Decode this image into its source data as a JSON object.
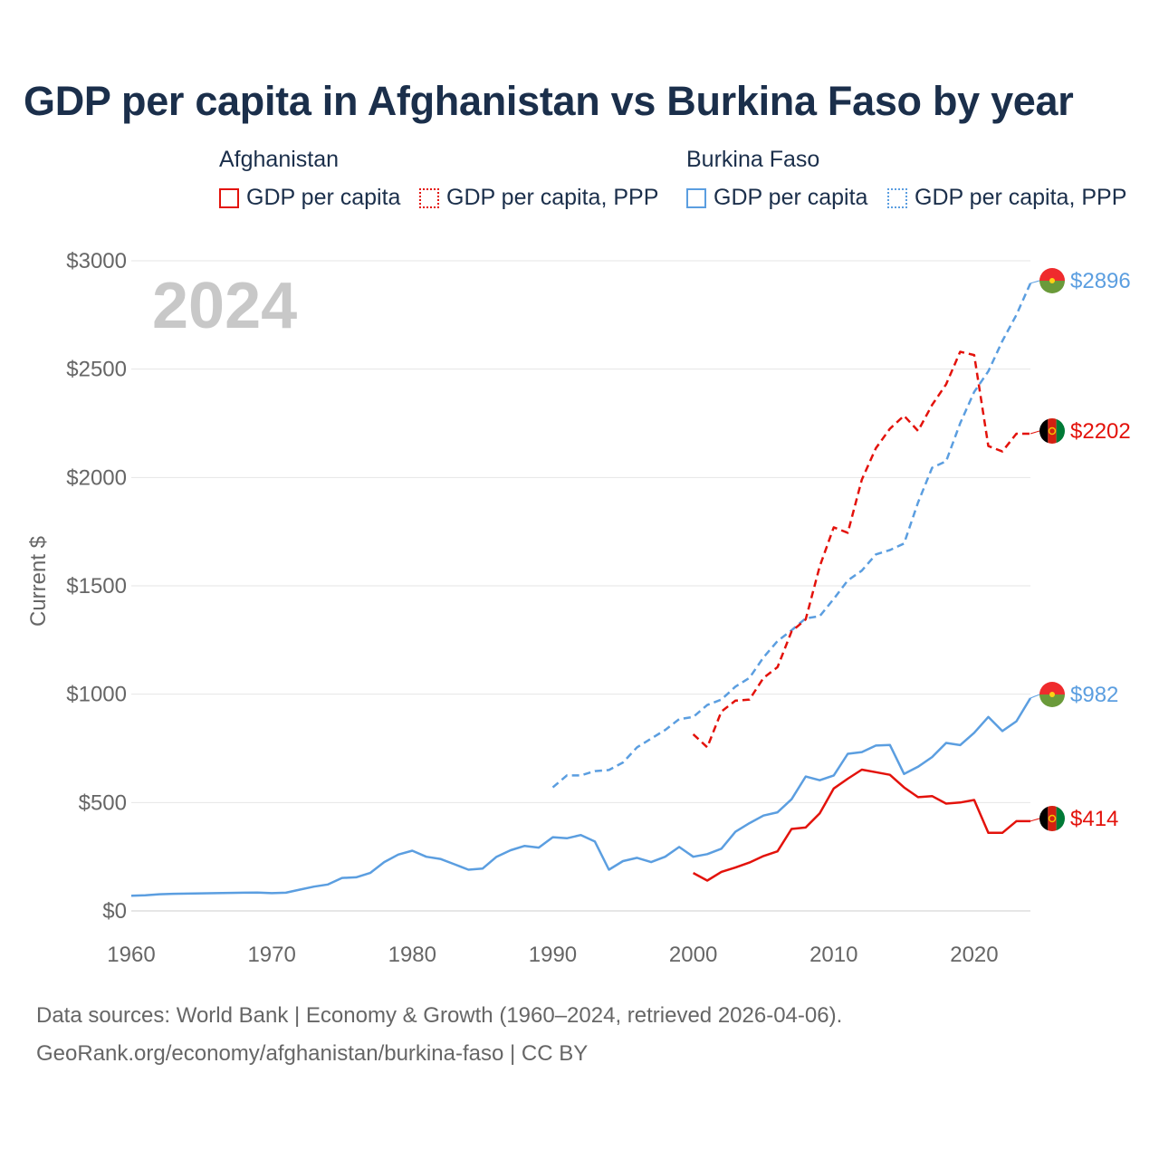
{
  "title": "GDP per capita in Afghanistan vs Burkina Faso by year",
  "legend": {
    "groups": [
      {
        "name": "Afghanistan",
        "items": [
          "GDP per capita",
          "GDP per capita, PPP"
        ]
      },
      {
        "name": "Burkina Faso",
        "items": [
          "GDP per capita",
          "GDP per capita, PPP"
        ]
      }
    ]
  },
  "year_label": "2024",
  "footer": {
    "line1": "Data sources: World Bank | Economy & Growth (1960–2024, retrieved 2026-04-06).",
    "line2": "GeoRank.org/economy/afghanistan/burkina-faso | CC BY"
  },
  "colors": {
    "afghanistan": "#e3120b",
    "burkina_faso": "#5b9ee0",
    "title": "#1b2f4b"
  },
  "chart_data": {
    "type": "line",
    "title": "GDP per capita in Afghanistan vs Burkina Faso by year",
    "xlabel": "",
    "ylabel": "Current $",
    "xlim": [
      1960,
      2024
    ],
    "ylim": [
      0,
      3000
    ],
    "x_ticks": [
      1960,
      1970,
      1980,
      1990,
      2000,
      2010,
      2020
    ],
    "y_ticks": [
      0,
      500,
      1000,
      1500,
      2000,
      2500,
      3000
    ],
    "y_tick_labels": [
      "$0",
      "$500",
      "$1000",
      "$1500",
      "$2000",
      "$2500",
      "$3000"
    ],
    "series": [
      {
        "name": "Burkina Faso GDP per capita",
        "country": "Burkina Faso",
        "style": "solid",
        "color": "#5b9ee0",
        "end_label": "$982",
        "x": [
          1960,
          1961,
          1962,
          1963,
          1964,
          1965,
          1966,
          1967,
          1968,
          1969,
          1970,
          1971,
          1972,
          1973,
          1974,
          1975,
          1976,
          1977,
          1978,
          1979,
          1980,
          1981,
          1982,
          1983,
          1984,
          1985,
          1986,
          1987,
          1988,
          1989,
          1990,
          1991,
          1992,
          1993,
          1994,
          1995,
          1996,
          1997,
          1998,
          1999,
          2000,
          2001,
          2002,
          2003,
          2004,
          2005,
          2006,
          2007,
          2008,
          2009,
          2010,
          2011,
          2012,
          2013,
          2014,
          2015,
          2016,
          2017,
          2018,
          2019,
          2020,
          2021,
          2022,
          2023,
          2024
        ],
        "values": [
          70,
          72,
          77,
          79,
          80,
          81,
          82,
          83,
          84,
          85,
          82,
          84,
          98,
          112,
          122,
          152,
          155,
          175,
          225,
          260,
          278,
          250,
          240,
          215,
          190,
          195,
          250,
          280,
          300,
          292,
          340,
          335,
          350,
          320,
          190,
          230,
          245,
          225,
          250,
          295,
          250,
          262,
          287,
          365,
          405,
          440,
          455,
          515,
          620,
          603,
          625,
          725,
          733,
          763,
          766,
          632,
          665,
          710,
          775,
          765,
          822,
          895,
          830,
          875,
          982
        ]
      },
      {
        "name": "Burkina Faso GDP per capita, PPP",
        "country": "Burkina Faso",
        "style": "dashed",
        "color": "#5b9ee0",
        "end_label": "$2896",
        "x": [
          1990,
          1991,
          1992,
          1993,
          1994,
          1995,
          1996,
          1997,
          1998,
          1999,
          2000,
          2001,
          2002,
          2003,
          2004,
          2005,
          2006,
          2007,
          2008,
          2009,
          2010,
          2011,
          2012,
          2013,
          2014,
          2015,
          2016,
          2017,
          2018,
          2019,
          2020,
          2021,
          2022,
          2023,
          2024
        ],
        "values": [
          570,
          625,
          625,
          645,
          650,
          685,
          755,
          795,
          835,
          885,
          895,
          950,
          975,
          1035,
          1075,
          1170,
          1245,
          1295,
          1350,
          1360,
          1440,
          1525,
          1570,
          1645,
          1665,
          1695,
          1885,
          2045,
          2075,
          2250,
          2395,
          2490,
          2630,
          2750,
          2896
        ]
      },
      {
        "name": "Afghanistan GDP per capita",
        "country": "Afghanistan",
        "style": "solid",
        "color": "#e3120b",
        "end_label": "$414",
        "x": [
          2000,
          2001,
          2002,
          2003,
          2004,
          2005,
          2006,
          2007,
          2008,
          2009,
          2010,
          2011,
          2012,
          2013,
          2014,
          2015,
          2016,
          2017,
          2018,
          2019,
          2020,
          2021,
          2022,
          2023,
          2024
        ],
        "values": [
          175,
          140,
          180,
          200,
          223,
          253,
          275,
          378,
          385,
          450,
          565,
          610,
          652,
          640,
          628,
          570,
          525,
          530,
          495,
          500,
          512,
          360,
          360,
          414,
          414
        ]
      },
      {
        "name": "Afghanistan GDP per capita, PPP",
        "country": "Afghanistan",
        "style": "dashed",
        "color": "#e3120b",
        "end_label": "$2202",
        "x": [
          2000,
          2001,
          2002,
          2003,
          2004,
          2005,
          2006,
          2007,
          2008,
          2009,
          2010,
          2011,
          2012,
          2013,
          2014,
          2015,
          2016,
          2017,
          2018,
          2019,
          2020,
          2021,
          2022,
          2023,
          2024
        ],
        "values": [
          815,
          755,
          920,
          970,
          975,
          1075,
          1125,
          1290,
          1345,
          1590,
          1770,
          1745,
          1990,
          2135,
          2225,
          2285,
          2215,
          2335,
          2430,
          2580,
          2565,
          2145,
          2120,
          2202,
          2202
        ]
      }
    ]
  }
}
